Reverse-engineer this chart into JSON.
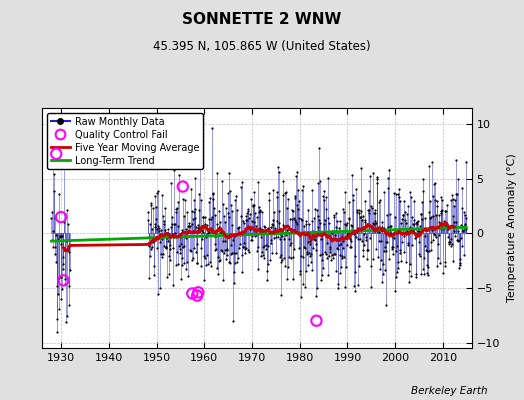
{
  "title": "SONNETTE 2 WNW",
  "subtitle": "45.395 N, 105.865 W (United States)",
  "ylabel": "Temperature Anomaly (°C)",
  "credit": "Berkeley Earth",
  "ylim": [
    -10.5,
    11.5
  ],
  "xlim": [
    1926,
    2016
  ],
  "xticks": [
    1930,
    1940,
    1950,
    1960,
    1970,
    1980,
    1990,
    2000,
    2010
  ],
  "yticks": [
    -10,
    -5,
    0,
    5,
    10
  ],
  "bg_color": "#e0e0e0",
  "plot_bg_color": "#ffffff",
  "grid_color": "#c0c0c0",
  "line_color": "#2222bb",
  "ma_color": "#cc0000",
  "trend_color": "#00aa00",
  "qc_color": "#ff00ff",
  "seed": 42,
  "start_year": 1928,
  "end_year": 2014,
  "gap_start": 1931.9,
  "gap_end": 1948.1,
  "qc_fail_times": [
    1929.0,
    1930.0,
    1930.5,
    1955.5,
    1957.5,
    1958.5,
    1958.75,
    1983.5
  ],
  "qc_fail_values": [
    7.3,
    1.5,
    -4.3,
    4.3,
    -5.5,
    -5.7,
    -5.4,
    -8.0
  ]
}
